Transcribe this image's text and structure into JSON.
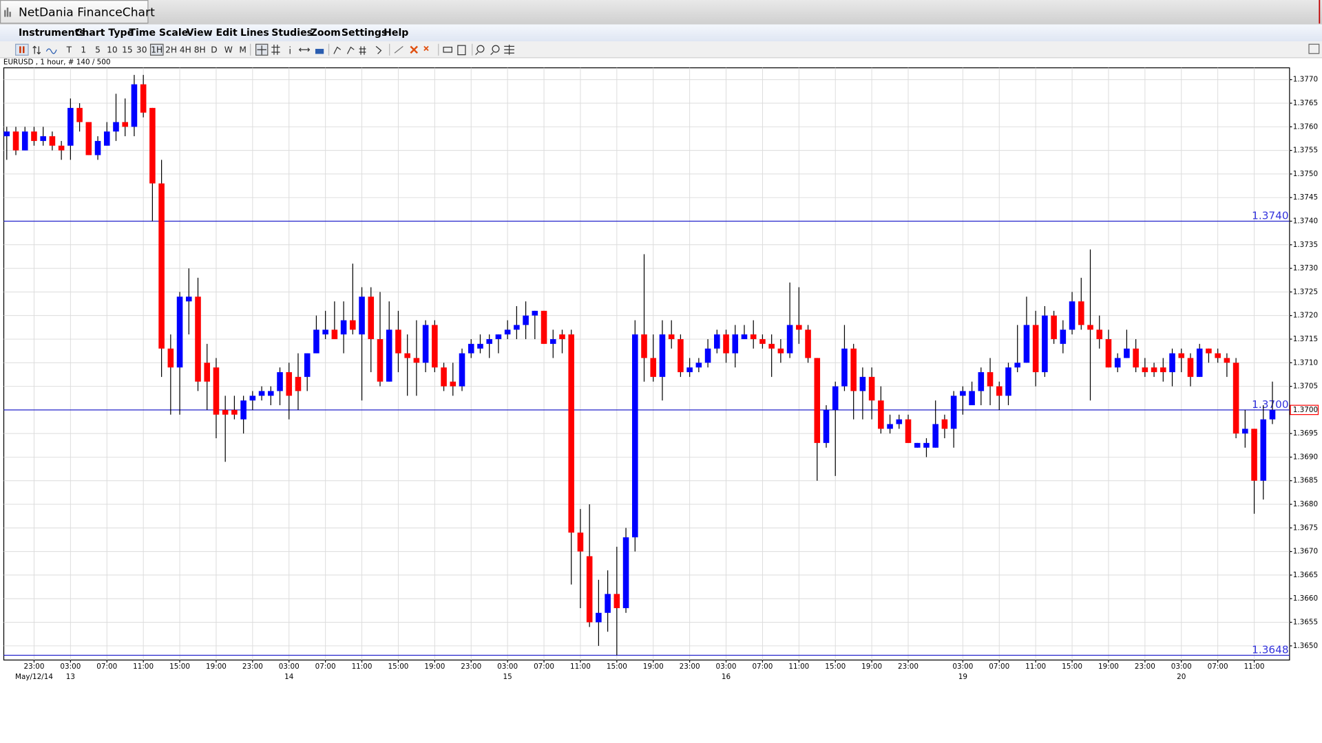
{
  "window": {
    "title": "NetDania FinanceChart"
  },
  "menu": [
    "Instruments",
    "Chart Type",
    "Time Scale",
    "View",
    "Edit",
    "Lines",
    "Studies",
    "Zoom",
    "Settings",
    "Help"
  ],
  "toolbar": [
    "T",
    "1",
    "5",
    "10",
    "15",
    "30",
    "1H",
    "2H",
    "4H",
    "8H",
    "D",
    "W",
    "M"
  ],
  "chart_data": {
    "type": "candlestick",
    "info": "EURUSD , 1 hour, # 140 / 500",
    "up_color": "#0000ff",
    "down_color": "#ff0000",
    "grid": true,
    "ylim": [
      1.3647,
      1.37725
    ],
    "yticks": [
      {
        "value": 1.365,
        "label": "1.3650"
      },
      {
        "value": 1.3655,
        "label": "1.3655"
      },
      {
        "value": 1.366,
        "label": "1.3660"
      },
      {
        "value": 1.3665,
        "label": "1.3665"
      },
      {
        "value": 1.367,
        "label": "1.3670"
      },
      {
        "value": 1.3675,
        "label": "1.3675"
      },
      {
        "value": 1.368,
        "label": "1.3680"
      },
      {
        "value": 1.3685,
        "label": "1.3685"
      },
      {
        "value": 1.369,
        "label": "1.3690"
      },
      {
        "value": 1.3695,
        "label": "1.3695"
      },
      {
        "value": 1.37,
        "label": "1.3700"
      },
      {
        "value": 1.3705,
        "label": "1.3705"
      },
      {
        "value": 1.371,
        "label": "1.3710"
      },
      {
        "value": 1.3715,
        "label": "1.3715"
      },
      {
        "value": 1.372,
        "label": "1.3720"
      },
      {
        "value": 1.3725,
        "label": "1.3725"
      },
      {
        "value": 1.373,
        "label": "1.3730"
      },
      {
        "value": 1.3735,
        "label": "1.3735"
      },
      {
        "value": 1.374,
        "label": "1.3740"
      },
      {
        "value": 1.3745,
        "label": "1.3745"
      },
      {
        "value": 1.375,
        "label": "1.3750"
      },
      {
        "value": 1.3755,
        "label": "1.3755"
      },
      {
        "value": 1.376,
        "label": "1.3760"
      },
      {
        "value": 1.3765,
        "label": "1.3765"
      },
      {
        "value": 1.377,
        "label": "1.3770"
      }
    ],
    "horizontal_lines": [
      {
        "value": 1.374,
        "label": "1.3740"
      },
      {
        "value": 1.37,
        "label": "1.3700"
      },
      {
        "value": 1.3648,
        "label": "1.3648"
      }
    ],
    "last_price": {
      "value": 1.37,
      "label": "1.3700"
    },
    "categories": [
      null,
      null,
      null,
      "23:00",
      null,
      null,
      null,
      "03:00",
      null,
      null,
      null,
      "07:00",
      null,
      null,
      null,
      "11:00",
      null,
      null,
      null,
      "15:00",
      null,
      null,
      null,
      "19:00",
      null,
      null,
      null,
      "23:00",
      null,
      null,
      null,
      "03:00",
      null,
      null,
      null,
      "07:00",
      null,
      null,
      null,
      "11:00",
      null,
      null,
      null,
      "15:00",
      null,
      null,
      null,
      "19:00",
      null,
      null,
      null,
      "23:00",
      null,
      null,
      null,
      "03:00",
      null,
      null,
      null,
      "07:00",
      null,
      null,
      null,
      "11:00",
      null,
      null,
      null,
      "15:00",
      null,
      null,
      null,
      "19:00",
      null,
      null,
      null,
      "23:00",
      null,
      null,
      null,
      "03:00",
      null,
      null,
      null,
      "07:00",
      null,
      null,
      null,
      "11:00",
      null,
      null,
      null,
      "15:00",
      null,
      null,
      null,
      "19:00",
      null,
      null,
      null,
      "23:00",
      null,
      null,
      null,
      null,
      null,
      "03:00",
      null,
      null,
      null,
      "07:00",
      null,
      null,
      null,
      "11:00",
      null,
      null,
      null,
      "15:00",
      null,
      null,
      null,
      "19:00",
      null,
      null,
      null,
      "23:00",
      null,
      null,
      null,
      "03:00",
      null,
      null,
      null,
      "07:00",
      null,
      null,
      null,
      "11:00",
      null,
      null
    ],
    "date_labels": [
      null,
      null,
      null,
      "May/12/14",
      null,
      null,
      null,
      "13",
      null,
      null,
      null,
      null,
      null,
      null,
      null,
      null,
      null,
      null,
      null,
      null,
      null,
      null,
      null,
      null,
      null,
      null,
      null,
      null,
      null,
      null,
      null,
      "14",
      null,
      null,
      null,
      null,
      null,
      null,
      null,
      null,
      null,
      null,
      null,
      null,
      null,
      null,
      null,
      null,
      null,
      null,
      null,
      null,
      null,
      null,
      null,
      "15",
      null,
      null,
      null,
      null,
      null,
      null,
      null,
      null,
      null,
      null,
      null,
      null,
      null,
      null,
      null,
      null,
      null,
      null,
      null,
      null,
      null,
      null,
      null,
      "16",
      null,
      null,
      null,
      null,
      null,
      null,
      null,
      null,
      null,
      null,
      null,
      null,
      null,
      null,
      null,
      null,
      null,
      null,
      null,
      null,
      null,
      null,
      null,
      null,
      null,
      "19",
      null,
      null,
      null,
      null,
      null,
      null,
      null,
      null,
      null,
      null,
      null,
      null,
      null,
      null,
      null,
      null,
      null,
      null,
      null,
      null,
      null,
      null,
      null,
      "20",
      null,
      null,
      null,
      null,
      null,
      null,
      null,
      null,
      null,
      null
    ],
    "open": [
      1.3758,
      1.3759,
      1.3755,
      1.3759,
      1.3757,
      1.3758,
      1.3756,
      1.3756,
      1.3764,
      1.3761,
      1.3754,
      1.3756,
      1.3759,
      1.3761,
      1.376,
      1.3769,
      1.3764,
      1.3748,
      1.3713,
      1.3709,
      1.3723,
      1.3724,
      1.371,
      1.3709,
      1.37,
      1.37,
      1.3698,
      1.3702,
      1.3703,
      1.3703,
      1.3704,
      1.3708,
      1.3707,
      1.3707,
      1.3712,
      1.3716,
      1.3717,
      1.3716,
      1.3719,
      1.3716,
      1.3724,
      1.3715,
      1.3706,
      1.3717,
      1.3712,
      1.3711,
      1.371,
      1.3718,
      1.3709,
      1.3706,
      1.3705,
      1.3712,
      1.3713,
      1.3714,
      1.3715,
      1.3716,
      1.3717,
      1.3718,
      1.372,
      1.3721,
      1.3714,
      1.3716,
      1.3716,
      1.3674,
      1.3669,
      1.3655,
      1.3657,
      1.3661,
      1.3658,
      1.3673,
      1.3716,
      1.3711,
      1.3707,
      1.3716,
      1.3715,
      1.3708,
      1.3709,
      1.371,
      1.3713,
      1.3716,
      1.3712,
      1.3715,
      1.3716,
      1.3715,
      1.3714,
      1.3713,
      1.3712,
      1.3718,
      1.3717,
      1.3711,
      1.3693,
      1.37,
      1.3705,
      1.3713,
      1.3704,
      1.3707,
      1.3702,
      1.3696,
      1.3697,
      1.3698,
      1.3692,
      1.3692,
      1.3692,
      1.3698,
      1.3696,
      1.3703,
      1.3701,
      1.3704,
      1.3708,
      1.3705,
      1.3703,
      1.3709,
      1.371,
      1.3718,
      1.3708,
      1.372,
      1.3714,
      1.3717,
      1.3723,
      1.3718,
      1.3717,
      1.3715,
      1.3709,
      1.3711,
      1.3713,
      1.3709,
      1.3709,
      1.3709,
      1.3708,
      1.3712,
      1.3711,
      1.3707,
      1.3713,
      1.3712,
      1.3711,
      1.371,
      1.3695,
      1.3696,
      1.3685,
      1.3698
    ],
    "high": [
      1.376,
      1.376,
      1.376,
      1.376,
      1.376,
      1.3759,
      1.3757,
      1.3766,
      1.3765,
      1.3761,
      1.3758,
      1.3761,
      1.3767,
      1.3766,
      1.3771,
      1.3771,
      1.3764,
      1.3753,
      1.3716,
      1.3725,
      1.373,
      1.3728,
      1.3714,
      1.3711,
      1.3703,
      1.3703,
      1.3703,
      1.3704,
      1.3705,
      1.3705,
      1.3709,
      1.371,
      1.3712,
      1.3712,
      1.372,
      1.3721,
      1.3723,
      1.3723,
      1.3731,
      1.3726,
      1.3726,
      1.3725,
      1.3723,
      1.3721,
      1.3716,
      1.3719,
      1.3719,
      1.3719,
      1.371,
      1.371,
      1.3713,
      1.3715,
      1.3716,
      1.3716,
      1.3716,
      1.3719,
      1.3722,
      1.3723,
      1.3721,
      1.3721,
      1.3717,
      1.3717,
      1.3717,
      1.3679,
      1.368,
      1.3664,
      1.3666,
      1.3671,
      1.3675,
      1.3719,
      1.3733,
      1.3716,
      1.3719,
      1.3719,
      1.3716,
      1.3711,
      1.3711,
      1.3715,
      1.3717,
      1.3717,
      1.3718,
      1.3718,
      1.3719,
      1.3716,
      1.3716,
      1.3715,
      1.3727,
      1.3726,
      1.3718,
      1.3711,
      1.3701,
      1.3706,
      1.3718,
      1.3714,
      1.3709,
      1.3709,
      1.3705,
      1.3699,
      1.3699,
      1.3699,
      1.3693,
      1.3694,
      1.3702,
      1.3699,
      1.3704,
      1.3705,
      1.3706,
      1.3709,
      1.3711,
      1.3706,
      1.371,
      1.3718,
      1.3724,
      1.3721,
      1.3722,
      1.3721,
      1.3719,
      1.3725,
      1.3728,
      1.3734,
      1.372,
      1.3717,
      1.3712,
      1.3717,
      1.3715,
      1.3711,
      1.371,
      1.3711,
      1.3713,
      1.3713,
      1.3712,
      1.3714,
      1.3713,
      1.3713,
      1.3712,
      1.3711,
      1.37,
      1.3696,
      1.3701,
      1.3706
    ],
    "low": [
      1.3753,
      1.3754,
      1.3755,
      1.3756,
      1.3756,
      1.3755,
      1.3753,
      1.3753,
      1.3759,
      1.3754,
      1.3753,
      1.3756,
      1.3757,
      1.3758,
      1.3758,
      1.3762,
      1.374,
      1.3707,
      1.3699,
      1.3699,
      1.3716,
      1.3704,
      1.37,
      1.3694,
      1.3689,
      1.3698,
      1.3695,
      1.37,
      1.3702,
      1.3701,
      1.3701,
      1.3698,
      1.37,
      1.3704,
      1.3712,
      1.3715,
      1.3715,
      1.3712,
      1.3716,
      1.3702,
      1.3708,
      1.3705,
      1.3706,
      1.3708,
      1.3703,
      1.3703,
      1.3708,
      1.3708,
      1.3704,
      1.3703,
      1.3704,
      1.3711,
      1.3712,
      1.3711,
      1.3712,
      1.3715,
      1.3715,
      1.3715,
      1.3715,
      1.3714,
      1.3711,
      1.3712,
      1.3663,
      1.3658,
      1.3654,
      1.365,
      1.3653,
      1.3648,
      1.3657,
      1.367,
      1.3706,
      1.3706,
      1.3702,
      1.3713,
      1.3707,
      1.3707,
      1.3708,
      1.3709,
      1.3712,
      1.371,
      1.3709,
      1.3715,
      1.3713,
      1.3713,
      1.3707,
      1.371,
      1.3711,
      1.3714,
      1.371,
      1.3685,
      1.3692,
      1.3686,
      1.3704,
      1.3698,
      1.3698,
      1.3698,
      1.3695,
      1.3695,
      1.3696,
      1.3693,
      1.3692,
      1.369,
      1.3692,
      1.3694,
      1.3692,
      1.3699,
      1.3701,
      1.3701,
      1.3701,
      1.37,
      1.3701,
      1.3708,
      1.371,
      1.3705,
      1.3707,
      1.3714,
      1.3712,
      1.3716,
      1.3717,
      1.3702,
      1.3713,
      1.3709,
      1.3708,
      1.3711,
      1.3708,
      1.3707,
      1.3707,
      1.3706,
      1.3705,
      1.3708,
      1.3705,
      1.3707,
      1.371,
      1.371,
      1.3707,
      1.3694,
      1.3692,
      1.3678,
      1.3681,
      1.3697
    ],
    "close": [
      1.3759,
      1.3755,
      1.3759,
      1.3757,
      1.3758,
      1.3756,
      1.3755,
      1.3764,
      1.3761,
      1.3754,
      1.3757,
      1.3759,
      1.3761,
      1.376,
      1.3769,
      1.3763,
      1.3748,
      1.3713,
      1.3709,
      1.3724,
      1.3724,
      1.3706,
      1.3706,
      1.3699,
      1.3699,
      1.3699,
      1.3702,
      1.3703,
      1.3704,
      1.3704,
      1.3708,
      1.3703,
      1.3704,
      1.3712,
      1.3717,
      1.3717,
      1.3715,
      1.3719,
      1.3717,
      1.3724,
      1.3715,
      1.3706,
      1.3717,
      1.3712,
      1.3711,
      1.371,
      1.3718,
      1.3709,
      1.3705,
      1.3705,
      1.3712,
      1.3714,
      1.3714,
      1.3715,
      1.3716,
      1.3717,
      1.3718,
      1.372,
      1.3721,
      1.3714,
      1.3715,
      1.3715,
      1.3674,
      1.367,
      1.3655,
      1.3657,
      1.3661,
      1.3658,
      1.3673,
      1.3716,
      1.3711,
      1.3707,
      1.3716,
      1.3715,
      1.3708,
      1.3709,
      1.371,
      1.3713,
      1.3716,
      1.3712,
      1.3716,
      1.3716,
      1.3715,
      1.3714,
      1.3713,
      1.3712,
      1.3718,
      1.3717,
      1.3711,
      1.3693,
      1.37,
      1.3705,
      1.3713,
      1.3704,
      1.3707,
      1.3702,
      1.3696,
      1.3697,
      1.3698,
      1.3693,
      1.3693,
      1.3693,
      1.3697,
      1.3696,
      1.3703,
      1.3704,
      1.3704,
      1.3708,
      1.3705,
      1.3703,
      1.3709,
      1.371,
      1.3718,
      1.3708,
      1.372,
      1.3715,
      1.3717,
      1.3723,
      1.3718,
      1.3717,
      1.3715,
      1.3709,
      1.3711,
      1.3713,
      1.3709,
      1.3708,
      1.3708,
      1.3708,
      1.3712,
      1.3711,
      1.3707,
      1.3713,
      1.3712,
      1.3711,
      1.371,
      1.3695,
      1.3696,
      1.3685,
      1.3698,
      1.37
    ]
  }
}
